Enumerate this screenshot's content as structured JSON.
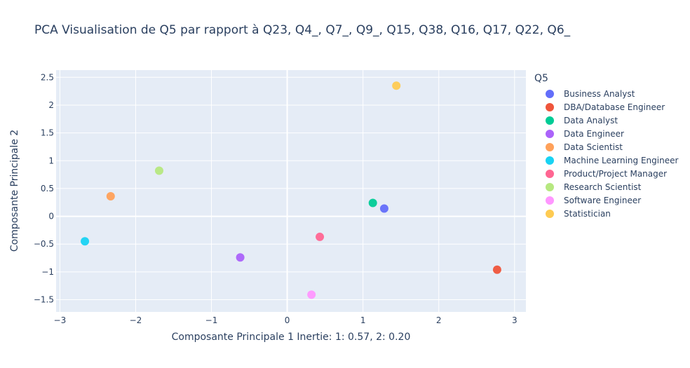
{
  "chart_data": {
    "type": "scatter",
    "title": "PCA Visualisation de Q5 par rapport à Q23, Q4_, Q7_, Q9_, Q15, Q38, Q16, Q17, Q22, Q6_",
    "xlabel": "Composante Principale 1 Inertie: 1: 0.57, 2: 0.20",
    "ylabel": "Composante Principale 2",
    "xlim": [
      -3.05,
      3.15
    ],
    "ylim": [
      -1.72,
      2.63
    ],
    "xticks": [
      -3,
      -2,
      -1,
      0,
      1,
      2,
      3
    ],
    "xtick_labels": [
      "−3",
      "−2",
      "−1",
      "0",
      "1",
      "2",
      "3"
    ],
    "yticks": [
      -1.5,
      -1,
      -0.5,
      0,
      0.5,
      1,
      1.5,
      2,
      2.5
    ],
    "ytick_labels": [
      "−1.5",
      "−1",
      "−0.5",
      "0",
      "0.5",
      "1",
      "1.5",
      "2",
      "2.5"
    ],
    "grid": true,
    "legend_title": "Q5",
    "legend_position": "right",
    "series": [
      {
        "name": "Business Analyst",
        "x": 1.28,
        "y": 0.14,
        "color": "#636efa"
      },
      {
        "name": "DBA/Database Engineer",
        "x": 2.77,
        "y": -0.96,
        "color": "#ef553b"
      },
      {
        "name": "Data Analyst",
        "x": 1.13,
        "y": 0.24,
        "color": "#00cc96"
      },
      {
        "name": "Data Engineer",
        "x": -0.62,
        "y": -0.74,
        "color": "#ab63fa"
      },
      {
        "name": "Data Scientist",
        "x": -2.33,
        "y": 0.36,
        "color": "#ffa15a"
      },
      {
        "name": "Machine Learning Engineer",
        "x": -2.67,
        "y": -0.45,
        "color": "#19d3f3"
      },
      {
        "name": "Product/Project Manager",
        "x": 0.43,
        "y": -0.37,
        "color": "#ff6692"
      },
      {
        "name": "Research Scientist",
        "x": -1.69,
        "y": 0.82,
        "color": "#b6e880"
      },
      {
        "name": "Software Engineer",
        "x": 0.32,
        "y": -1.41,
        "color": "#ff97ff"
      },
      {
        "name": "Statistician",
        "x": 1.44,
        "y": 2.35,
        "color": "#fecb52"
      }
    ]
  }
}
